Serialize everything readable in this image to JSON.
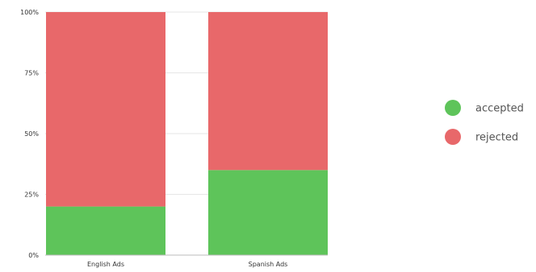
{
  "chart_data": {
    "type": "bar",
    "stacked": true,
    "categories": [
      "English Ads",
      "Spanish Ads"
    ],
    "series": [
      {
        "name": "accepted",
        "color": "#5ec45a",
        "values": [
          20,
          35
        ]
      },
      {
        "name": "rejected",
        "color": "#e8686a",
        "values": [
          80,
          65
        ]
      }
    ],
    "ylim": [
      0,
      100
    ],
    "yticks": [
      "0%",
      "25%",
      "50%",
      "75%",
      "100%"
    ],
    "grid": true,
    "legend_position": "right"
  }
}
